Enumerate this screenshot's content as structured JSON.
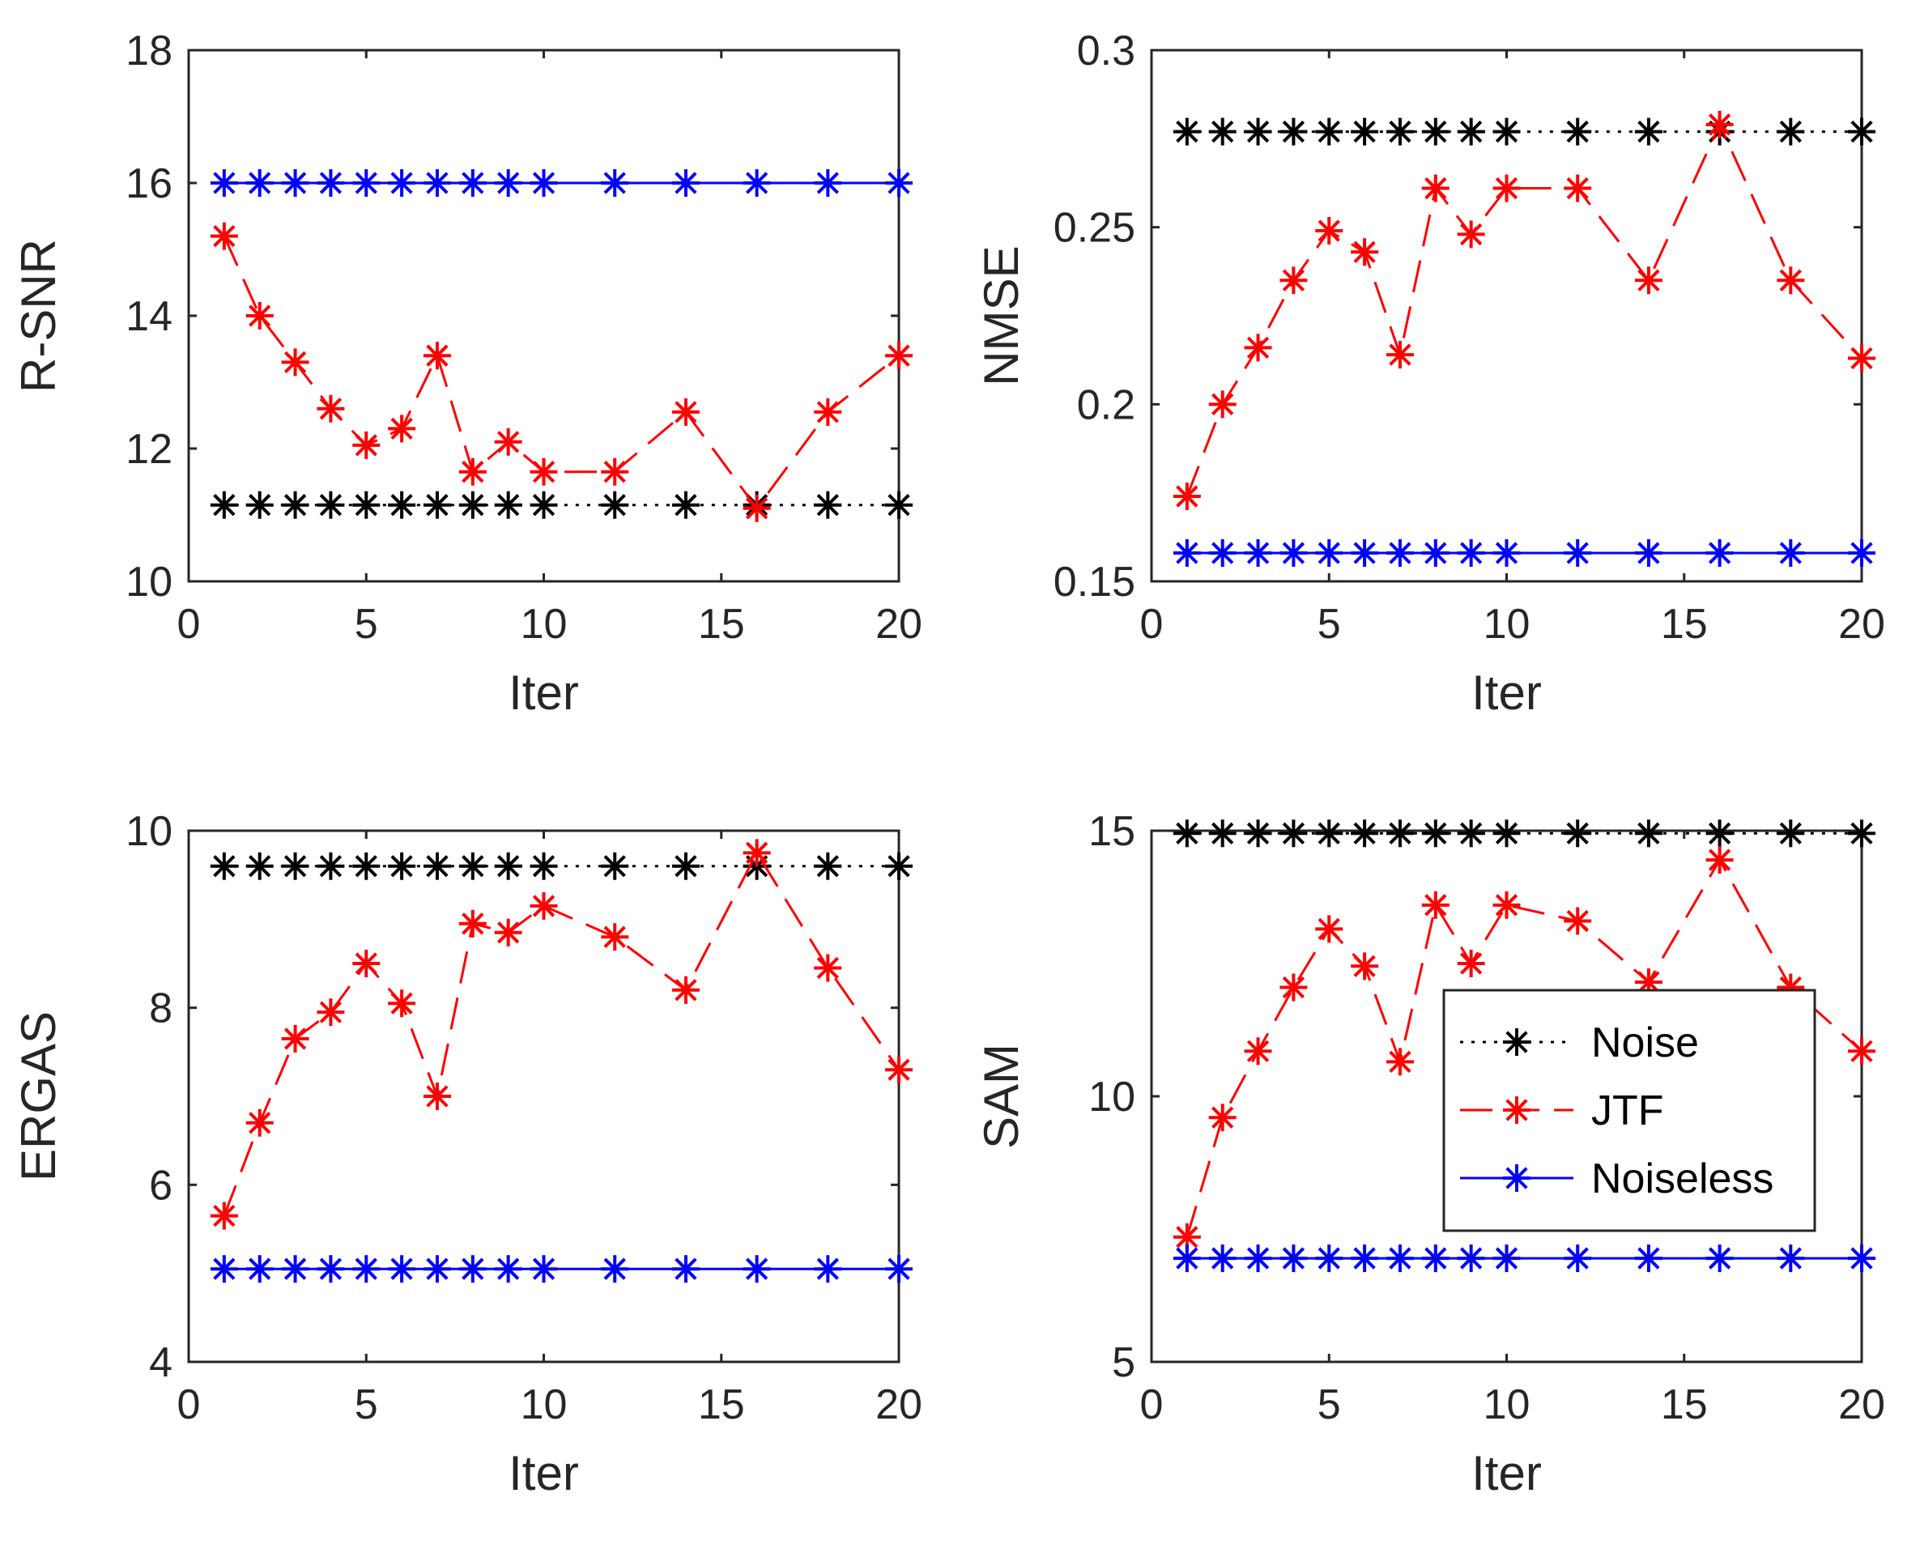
{
  "colors": {
    "Noise": "#000000",
    "JTF": "#ff0000",
    "Noiseless": "#0000ff",
    "axis": "#262626"
  },
  "legend": {
    "placement": "inside lower-right of SAM panel",
    "entries": [
      "Noise",
      "JTF",
      "Noiseless"
    ]
  },
  "chart_data": [
    {
      "type": "line",
      "xlabel": "Iter",
      "ylabel": "R-SNR",
      "xlim": [
        0,
        20
      ],
      "ylim": [
        10,
        18
      ],
      "xticks": [
        0,
        5,
        10,
        15,
        20
      ],
      "yticks": [
        10,
        12,
        14,
        16,
        18
      ],
      "ytick_labels": [
        "10",
        "12",
        "14",
        "16",
        "18"
      ],
      "x": [
        1,
        2,
        3,
        4,
        5,
        6,
        7,
        8,
        9,
        10,
        12,
        14,
        16,
        18,
        20
      ],
      "series": [
        {
          "name": "Noise",
          "style": "dotted",
          "values": [
            11.15,
            11.15,
            11.15,
            11.15,
            11.15,
            11.15,
            11.15,
            11.15,
            11.15,
            11.15,
            11.15,
            11.15,
            11.15,
            11.15,
            11.15
          ]
        },
        {
          "name": "JTF",
          "style": "dashed",
          "values": [
            15.2,
            14.0,
            13.3,
            12.6,
            12.05,
            12.3,
            13.4,
            11.65,
            12.1,
            11.65,
            11.65,
            12.55,
            11.1,
            12.55,
            13.4
          ]
        },
        {
          "name": "Noiseless",
          "style": "dashdot",
          "values": [
            16.0,
            16.0,
            16.0,
            16.0,
            16.0,
            16.0,
            16.0,
            16.0,
            16.0,
            16.0,
            16.0,
            16.0,
            16.0,
            16.0,
            16.0
          ]
        }
      ]
    },
    {
      "type": "line",
      "xlabel": "Iter",
      "ylabel": "NMSE",
      "xlim": [
        0,
        20
      ],
      "ylim": [
        0.15,
        0.3
      ],
      "xticks": [
        0,
        5,
        10,
        15,
        20
      ],
      "yticks": [
        0.15,
        0.2,
        0.25,
        0.3
      ],
      "ytick_labels": [
        "0.15",
        "0.2",
        "0.25",
        "0.3"
      ],
      "x": [
        1,
        2,
        3,
        4,
        5,
        6,
        7,
        8,
        9,
        10,
        12,
        14,
        16,
        18,
        20
      ],
      "series": [
        {
          "name": "Noise",
          "style": "dotted",
          "values": [
            0.277,
            0.277,
            0.277,
            0.277,
            0.277,
            0.277,
            0.277,
            0.277,
            0.277,
            0.277,
            0.277,
            0.277,
            0.277,
            0.277,
            0.277
          ]
        },
        {
          "name": "JTF",
          "style": "dashed",
          "values": [
            0.174,
            0.2,
            0.216,
            0.235,
            0.249,
            0.243,
            0.214,
            0.261,
            0.248,
            0.261,
            0.261,
            0.235,
            0.279,
            0.235,
            0.213
          ]
        },
        {
          "name": "Noiseless",
          "style": "dashdot",
          "values": [
            0.158,
            0.158,
            0.158,
            0.158,
            0.158,
            0.158,
            0.158,
            0.158,
            0.158,
            0.158,
            0.158,
            0.158,
            0.158,
            0.158,
            0.158
          ]
        }
      ]
    },
    {
      "type": "line",
      "xlabel": "Iter",
      "ylabel": "ERGAS",
      "xlim": [
        0,
        20
      ],
      "ylim": [
        4,
        10
      ],
      "xticks": [
        0,
        5,
        10,
        15,
        20
      ],
      "yticks": [
        4,
        6,
        8,
        10
      ],
      "ytick_labels": [
        "4",
        "6",
        "8",
        "10"
      ],
      "x": [
        1,
        2,
        3,
        4,
        5,
        6,
        7,
        8,
        9,
        10,
        12,
        14,
        16,
        18,
        20
      ],
      "series": [
        {
          "name": "Noise",
          "style": "dotted",
          "values": [
            9.6,
            9.6,
            9.6,
            9.6,
            9.6,
            9.6,
            9.6,
            9.6,
            9.6,
            9.6,
            9.6,
            9.6,
            9.6,
            9.6,
            9.6
          ]
        },
        {
          "name": "JTF",
          "style": "dashed",
          "values": [
            5.65,
            6.7,
            7.65,
            7.95,
            8.5,
            8.05,
            7.0,
            8.95,
            8.85,
            9.15,
            8.8,
            8.2,
            9.75,
            8.45,
            7.3
          ]
        },
        {
          "name": "Noiseless",
          "style": "dashdot",
          "values": [
            5.05,
            5.05,
            5.05,
            5.05,
            5.05,
            5.05,
            5.05,
            5.05,
            5.05,
            5.05,
            5.05,
            5.05,
            5.05,
            5.05,
            5.05
          ]
        }
      ]
    },
    {
      "type": "line",
      "xlabel": "Iter",
      "ylabel": "SAM",
      "xlim": [
        0,
        20
      ],
      "ylim": [
        5,
        15
      ],
      "xticks": [
        0,
        5,
        10,
        15,
        20
      ],
      "yticks": [
        5,
        10,
        15
      ],
      "ytick_labels": [
        "5",
        "10",
        "15"
      ],
      "x": [
        1,
        2,
        3,
        4,
        5,
        6,
        7,
        8,
        9,
        10,
        12,
        14,
        16,
        18,
        20
      ],
      "legend": true,
      "series": [
        {
          "name": "Noise",
          "style": "dotted",
          "values": [
            14.95,
            14.95,
            14.95,
            14.95,
            14.95,
            14.95,
            14.95,
            14.95,
            14.95,
            14.95,
            14.95,
            14.95,
            14.95,
            14.95,
            14.95
          ]
        },
        {
          "name": "JTF",
          "style": "dashed",
          "values": [
            7.35,
            9.6,
            10.85,
            12.05,
            13.15,
            12.45,
            10.65,
            13.6,
            12.5,
            13.6,
            13.3,
            12.15,
            14.45,
            12.05,
            10.85
          ]
        },
        {
          "name": "Noiseless",
          "style": "dashdot",
          "values": [
            6.95,
            6.95,
            6.95,
            6.95,
            6.95,
            6.95,
            6.95,
            6.95,
            6.95,
            6.95,
            6.95,
            6.95,
            6.95,
            6.95,
            6.95
          ]
        }
      ]
    }
  ]
}
